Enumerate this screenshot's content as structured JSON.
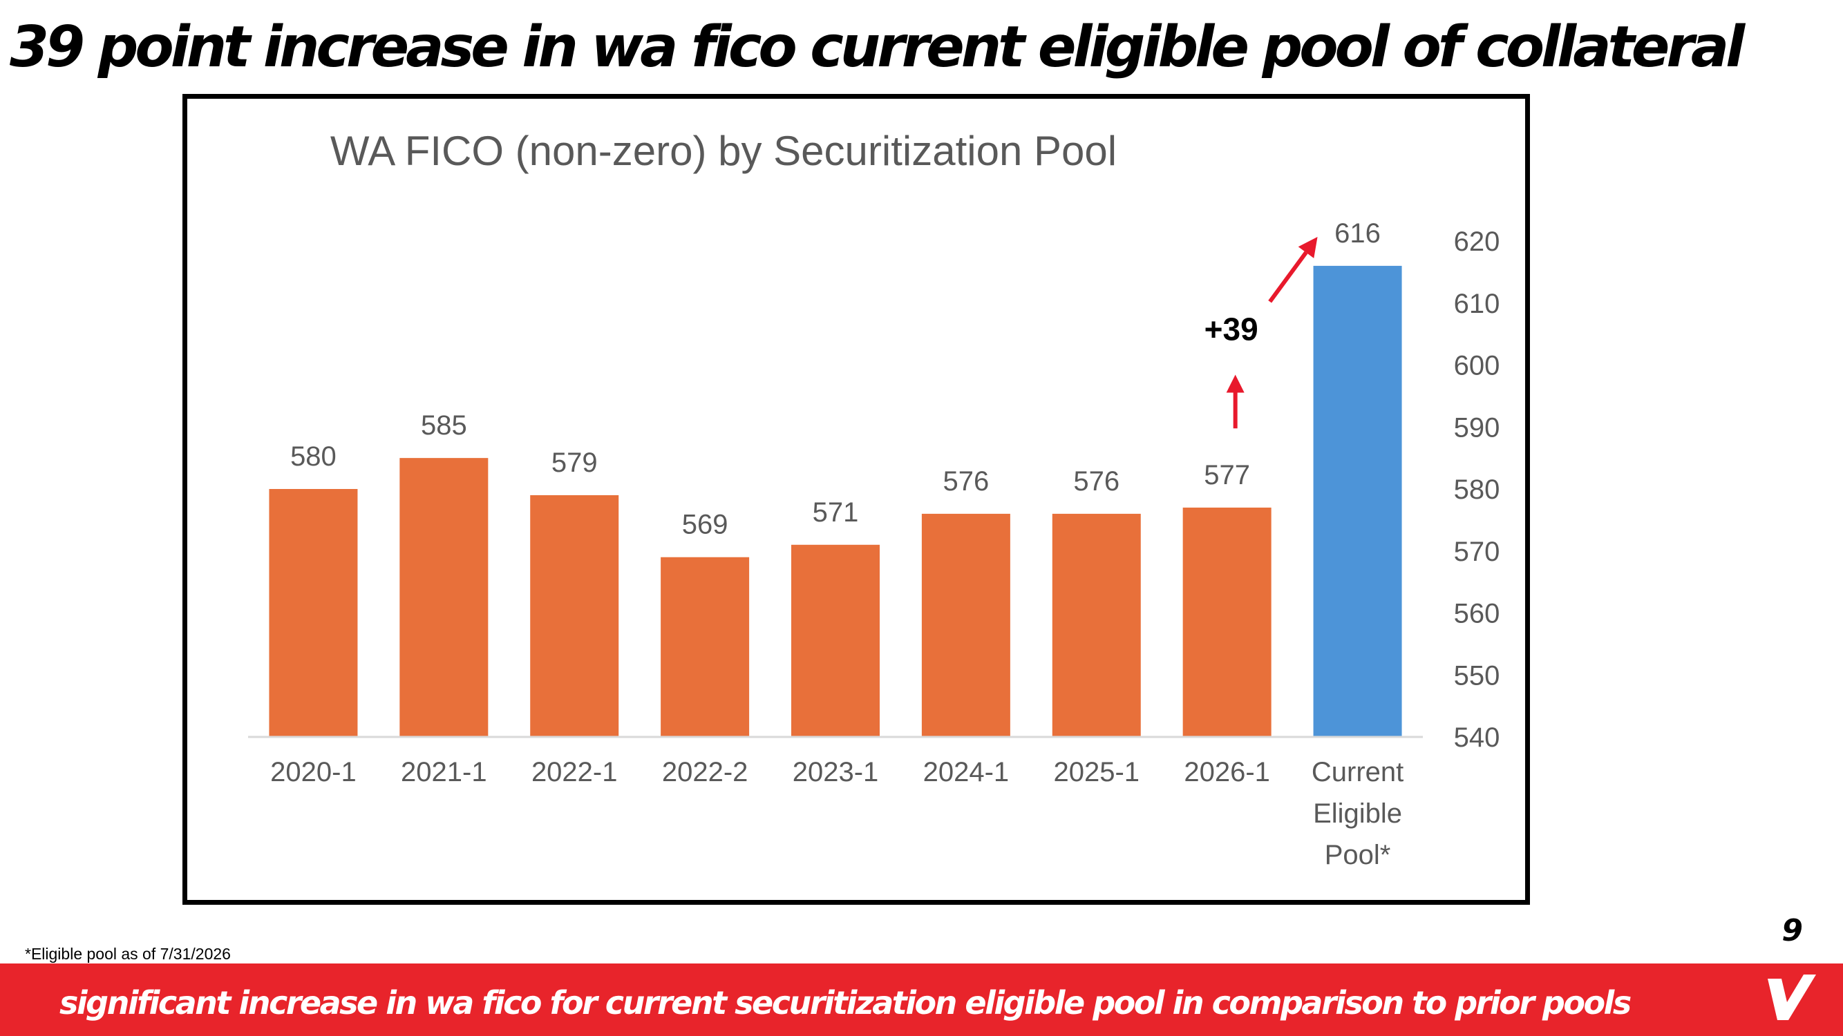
{
  "slide": {
    "title": "39 point increase in wa fico current eligible pool of collateral",
    "footnote": "*Eligible pool as of 7/31/2026",
    "page_number": "9",
    "footer_text": "significant increase in wa fico for current securitization eligible pool in comparison to prior pools"
  },
  "colors": {
    "prior_pool_bar": "#e8703a",
    "current_pool_bar": "#4d94d8",
    "annotation_arrow": "#e8192c",
    "footer_bar": "#e8242b"
  },
  "icons": {
    "brand_logo": "v-logo-icon"
  },
  "chart_data": {
    "type": "bar",
    "title": "WA FICO (non-zero) by Securitization Pool",
    "categories": [
      "2020-1",
      "2021-1",
      "2022-1",
      "2022-2",
      "2023-1",
      "2024-1",
      "2025-1",
      "2026-1",
      "Current Eligible Pool*"
    ],
    "values": [
      580,
      585,
      579,
      569,
      571,
      576,
      576,
      577,
      616
    ],
    "data_labels": [
      "580",
      "585",
      "579",
      "569",
      "571",
      "576",
      "576",
      "577",
      "616"
    ],
    "yticks": [
      "540",
      "550",
      "560",
      "570",
      "580",
      "590",
      "600",
      "610",
      "620"
    ],
    "ylim": [
      540,
      620
    ],
    "y_axis_position": "right",
    "grid": false,
    "legend": "none",
    "xlabel": "",
    "ylabel": "",
    "annotation": {
      "text": "+39",
      "from_category": "2026-1",
      "to_category": "Current Eligible Pool*"
    }
  }
}
